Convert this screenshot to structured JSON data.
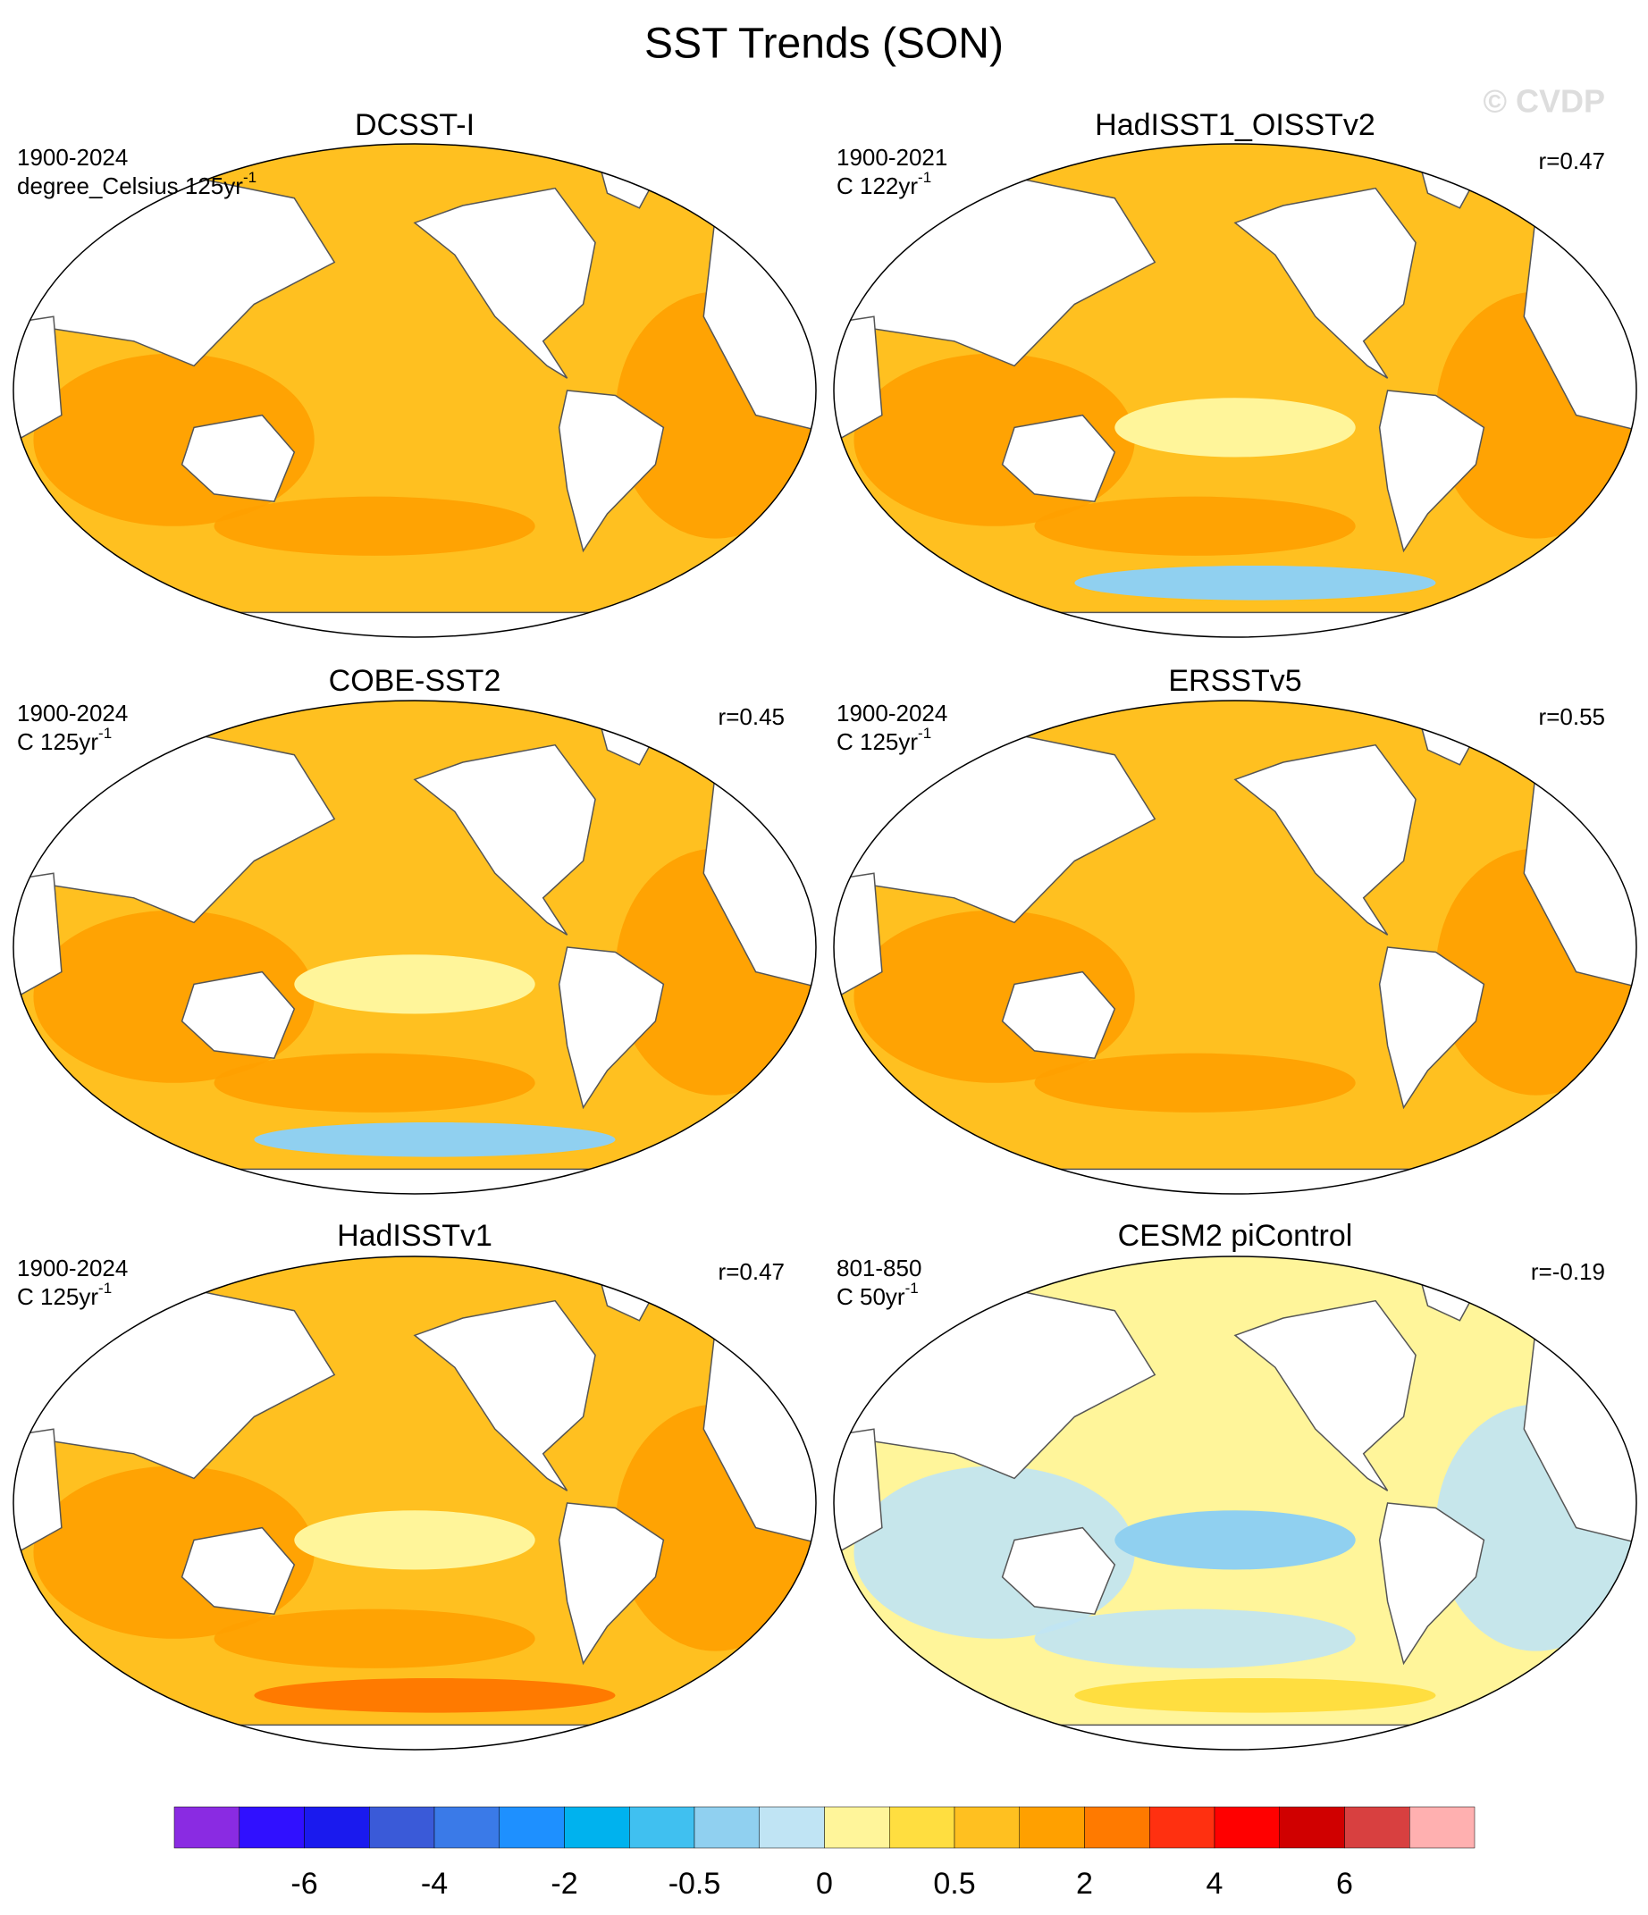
{
  "title": "SST Trends (SON)",
  "watermark": "© CVDP",
  "panels": [
    {
      "title": "DCSST-I",
      "period": "1900-2024",
      "units": "degree_Celsius 125yr",
      "units_exp": "-1"
    },
    {
      "title": "HadISST1_OISSTv2",
      "period": "1900-2021",
      "units": "C 122yr",
      "units_exp": "-1",
      "r": "r=0.47"
    },
    {
      "title": "COBE-SST2",
      "period": "1900-2024",
      "units": "C 125yr",
      "units_exp": "-1",
      "r": "r=0.45"
    },
    {
      "title": "ERSSTv5",
      "period": "1900-2024",
      "units": "C 125yr",
      "units_exp": "-1",
      "r": "r=0.55"
    },
    {
      "title": "HadISSTv1",
      "period": "1900-2024",
      "units": "C 125yr",
      "units_exp": "-1",
      "r": "r=0.47"
    },
    {
      "title": "CESM2 piControl",
      "period": "801-850",
      "units": "C 50yr",
      "units_exp": "-1",
      "r": "r=-0.19"
    }
  ],
  "colorbar": {
    "colors": [
      "#8a2be2",
      "#3010ff",
      "#1a1aee",
      "#3a5ad8",
      "#3a7ae8",
      "#1e90ff",
      "#00b2ee",
      "#40c0f0",
      "#90d0f0",
      "#c0e4f4",
      "#fff59a",
      "#ffde40",
      "#ffc020",
      "#ffa000",
      "#ff7a00",
      "#ff3010",
      "#ff0000",
      "#d00000",
      "#d84040",
      "#ffb0b0"
    ],
    "labels": [
      "-6",
      "-4",
      "-2",
      "-0.5",
      "0",
      "0.5",
      "2",
      "4",
      "6"
    ]
  }
}
